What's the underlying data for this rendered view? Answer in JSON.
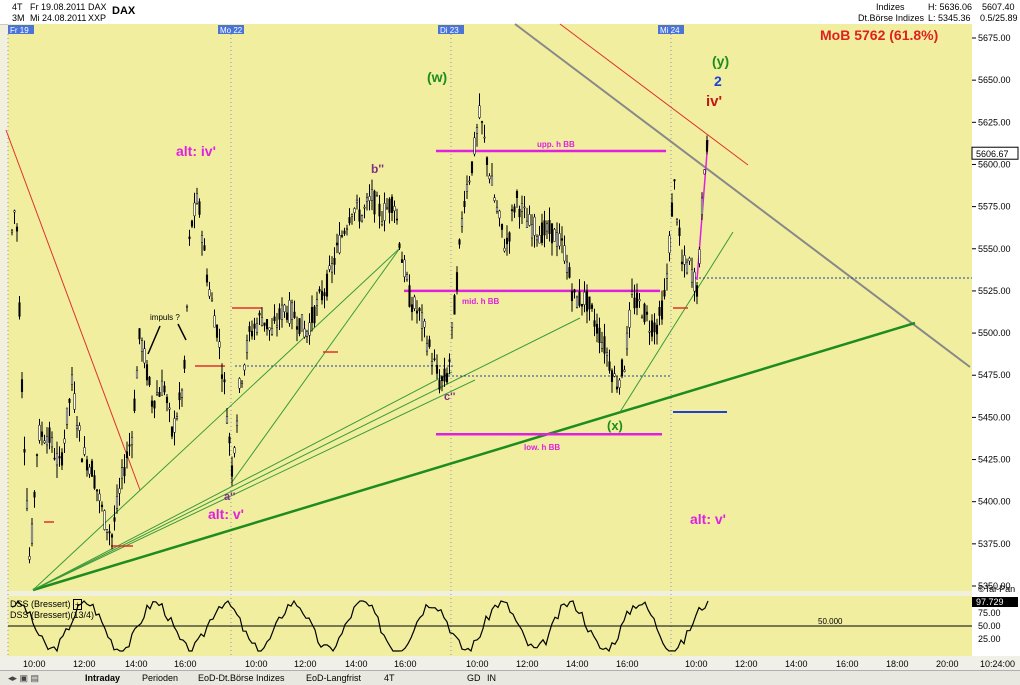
{
  "header": {
    "row1_left": "4T",
    "row1_date": "Fr 19.08.2011",
    "row1_sym": "DAX",
    "row2_left": "3M",
    "row2_date": "Mi 24.08.2011",
    "row2_sym": "XXP",
    "title": "DAX",
    "index_label": "Indizes",
    "exchange_label": "Dt.Börse Indizes",
    "high": "H: 5636.06",
    "low": "L: 5345.36",
    "last": "5607.40",
    "change": "0.5/25.89"
  },
  "day_markers": [
    "Fr 19",
    "Mo 22",
    "Di 23",
    "Mi 24"
  ],
  "annotations": {
    "mob": "MoB 5762 (61.8%)",
    "wave_w": "(w)",
    "wave_y": "(y)",
    "wave_2": "2",
    "wave_iv": "iv'",
    "alt_iv": "alt: iv'",
    "b2": "b''",
    "impuls": "impuls ?",
    "a2": "a''",
    "alt_v_left": "alt: v'",
    "c2": "c''",
    "wave_x": "(x)",
    "alt_v_right": "alt: v'",
    "upp_bb": "upp. h BB",
    "mid_bb": "mid. h BB",
    "low_bb": "low. h BB"
  },
  "price_axis": {
    "labels": [
      "5675.00",
      "5650.00",
      "5625.00",
      "5600.00",
      "5575.00",
      "5550.00",
      "5525.00",
      "5500.00",
      "5475.00",
      "5450.00",
      "5425.00",
      "5400.00",
      "5375.00",
      "5350.00"
    ],
    "current_price": "5606.67",
    "source": "©Tai-Pan"
  },
  "time_axis": {
    "labels": [
      "10:00",
      "12:00",
      "14:00",
      "16:00",
      "10:00",
      "12:00",
      "14:00",
      "16:00",
      "10:00",
      "12:00",
      "14:00",
      "16:00",
      "10:00",
      "12:00",
      "14:00",
      "16:00",
      "18:00",
      "20:00"
    ],
    "end_label": "10:24:00"
  },
  "oscillator": {
    "label1": "DSS (Bressert)",
    "label2": "DSS (Bressert)(13/4)",
    "level_label": "50.000",
    "current": "97.729",
    "ticks": [
      "75.00",
      "50.00",
      "25.00"
    ]
  },
  "tabs": [
    "Intraday",
    "Perioden",
    "EoD-Dt.Börse Indizes",
    "EoD-Langfrist",
    "4T",
    "GD",
    "IN"
  ],
  "colors": {
    "background": "#f1ef9f",
    "magenta": "#e020e0",
    "green": "#1e8c1e",
    "gray_line": "#888888",
    "red_line": "#e03030",
    "blue": "#2040d0",
    "candle": "#000000"
  },
  "chart_data": {
    "type": "line",
    "title": "DAX",
    "xlabel": "",
    "ylabel": "",
    "ylim": [
      5345,
      5690
    ],
    "x": [
      "Fr 19 10:00",
      "Fr 19 12:00",
      "Fr 19 14:00",
      "Fr 19 16:00",
      "Mo 22 10:00",
      "Mo 22 12:00",
      "Mo 22 14:00",
      "Mo 22 16:00",
      "Di 23 10:00",
      "Di 23 12:00",
      "Di 23 14:00",
      "Di 23 16:00",
      "Mi 24 10:00"
    ],
    "series": [
      {
        "values": [
          5360,
          5395,
          5420,
          5575,
          5410,
          5500,
          5560,
          5530,
          5630,
          5570,
          5530,
          5460,
          5610
        ]
      }
    ],
    "levels": {
      "upper_bb": 5608,
      "middle_bb": 5525,
      "lower_bb": 5440
    },
    "oscillator_level": 50
  }
}
